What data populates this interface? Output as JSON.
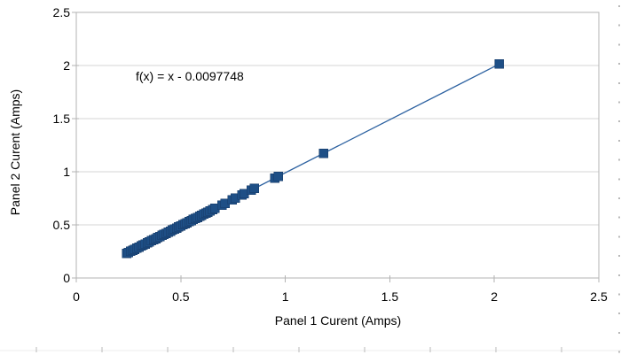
{
  "window": {
    "background": "#ffffff"
  },
  "colors": {
    "marker_fill": "#1e4f86",
    "marker_stroke": "#163a66",
    "trend_line": "#2c61a0",
    "gridline": "#d6d6d6",
    "axis_line": "#b3b3b3",
    "text": "#000000",
    "sheet_mark": "#b9b9b9",
    "sheet_faint_line": "#ededed"
  },
  "chart_data": {
    "type": "scatter",
    "title": "",
    "xlabel": "Panel 1 Curent (Amps)",
    "ylabel": "Panel 2 Curent (Amps)",
    "xlim": [
      0,
      2.5
    ],
    "ylim": [
      0,
      2.5
    ],
    "grid": "horizontal",
    "legend": "none",
    "marker": "square",
    "xticks": {
      "values": [
        0,
        0.5,
        1,
        1.5,
        2,
        2.5
      ],
      "labels": [
        "0",
        "0.5",
        "1",
        "1.5",
        "2",
        "2.5"
      ]
    },
    "yticks": {
      "values": [
        0,
        0.5,
        1,
        1.5,
        2,
        2.5
      ],
      "labels": [
        "0",
        "0.5",
        "1",
        "1.5",
        "2",
        "2.5"
      ]
    },
    "annotation": {
      "text": "f(x) = x - 0.0097748",
      "slope": 1,
      "intercept": -0.0097748
    },
    "series": [
      {
        "name": "Panel 2 Curent (Amps)",
        "points": [
          [
            0.24,
            0.2302
          ],
          [
            0.25,
            0.2402
          ],
          [
            0.26,
            0.2502
          ],
          [
            0.27,
            0.2602
          ],
          [
            0.28,
            0.2702
          ],
          [
            0.29,
            0.2802
          ],
          [
            0.3,
            0.2902
          ],
          [
            0.31,
            0.3002
          ],
          [
            0.32,
            0.3102
          ],
          [
            0.33,
            0.3202
          ],
          [
            0.34,
            0.3302
          ],
          [
            0.35,
            0.3402
          ],
          [
            0.36,
            0.3502
          ],
          [
            0.37,
            0.3602
          ],
          [
            0.38,
            0.3702
          ],
          [
            0.39,
            0.3802
          ],
          [
            0.4,
            0.3902
          ],
          [
            0.41,
            0.4002
          ],
          [
            0.42,
            0.4102
          ],
          [
            0.43,
            0.4202
          ],
          [
            0.44,
            0.4302
          ],
          [
            0.45,
            0.4402
          ],
          [
            0.46,
            0.4502
          ],
          [
            0.47,
            0.4602
          ],
          [
            0.48,
            0.4702
          ],
          [
            0.49,
            0.4802
          ],
          [
            0.5,
            0.4902
          ],
          [
            0.51,
            0.5002
          ],
          [
            0.52,
            0.5102
          ],
          [
            0.53,
            0.5202
          ],
          [
            0.54,
            0.5302
          ],
          [
            0.55,
            0.5402
          ],
          [
            0.56,
            0.5502
          ],
          [
            0.57,
            0.5602
          ],
          [
            0.58,
            0.5702
          ],
          [
            0.59,
            0.5802
          ],
          [
            0.6,
            0.5902
          ],
          [
            0.61,
            0.6002
          ],
          [
            0.62,
            0.6102
          ],
          [
            0.63,
            0.6202
          ],
          [
            0.64,
            0.6302
          ],
          [
            0.652,
            0.6422
          ],
          [
            0.664,
            0.6542
          ],
          [
            0.697,
            0.6872
          ],
          [
            0.711,
            0.7012
          ],
          [
            0.746,
            0.7362
          ],
          [
            0.76,
            0.7502
          ],
          [
            0.792,
            0.7822
          ],
          [
            0.804,
            0.7942
          ],
          [
            0.838,
            0.8282
          ],
          [
            0.852,
            0.8422
          ],
          [
            0.949,
            0.9392
          ],
          [
            0.966,
            0.9562
          ],
          [
            1.184,
            1.1742
          ],
          [
            2.024,
            2.0142
          ]
        ]
      }
    ]
  },
  "sheet_edge_marks": {
    "bottom_ticks": {
      "start_x": 41,
      "step": 74,
      "count": 9,
      "y1": 392,
      "y2": 398
    },
    "bottom_line_y": 396,
    "right_dots": {
      "x": 697,
      "start_y": 7,
      "step": 21.7,
      "count": 19
    }
  }
}
